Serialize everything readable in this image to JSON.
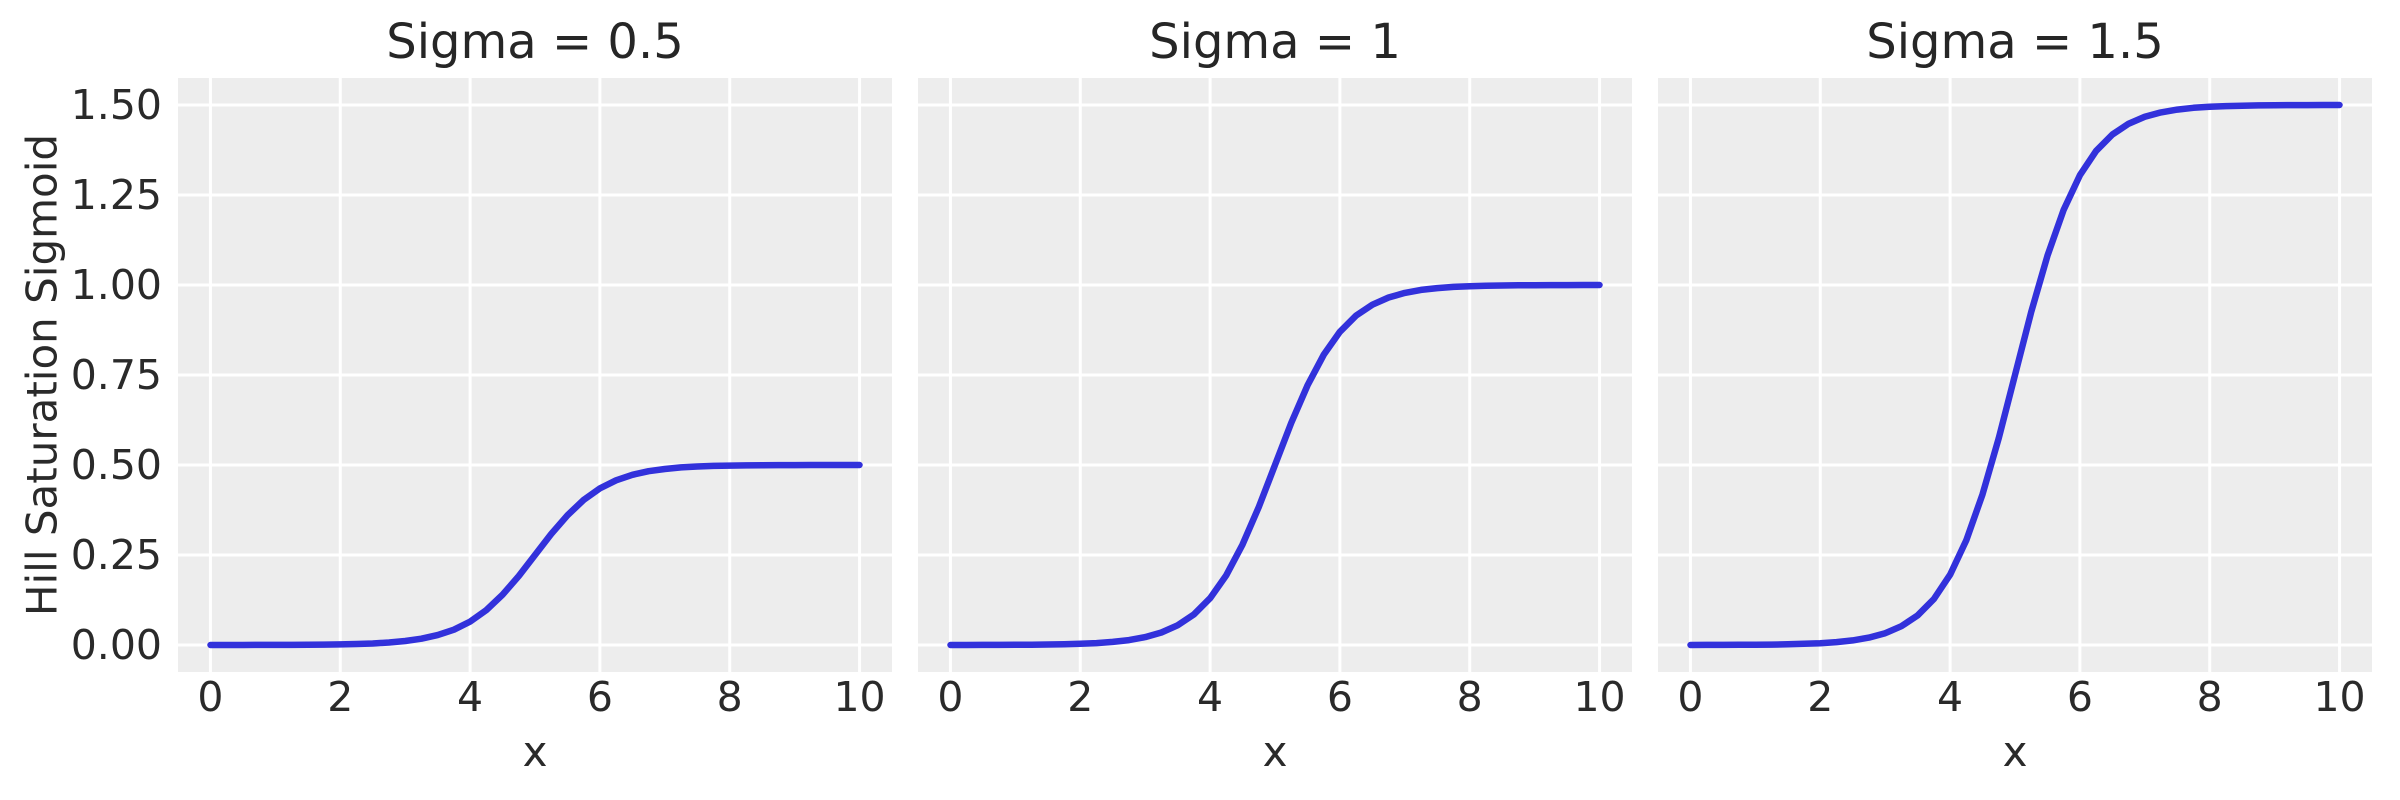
{
  "figure": {
    "background": "#ffffff",
    "axes_background": "#EDEDED",
    "grid_color": "#FFFFFF",
    "text_color": "#2a2a2a",
    "line_color": "#3231db"
  },
  "ylabel": "Hill Saturation Sigmoid",
  "y_tick_labels": [
    "1.50",
    "1.25",
    "1.00",
    "0.75",
    "0.50",
    "0.25",
    "0.00"
  ],
  "x_tick_labels": [
    "0",
    "2",
    "4",
    "6",
    "8",
    "10"
  ],
  "panels": [
    {
      "title": "Sigma = 0.5",
      "xlabel": "x"
    },
    {
      "title": "Sigma = 1",
      "xlabel": "x"
    },
    {
      "title": "Sigma = 1.5",
      "xlabel": "x"
    }
  ],
  "chart_data": {
    "type": "line",
    "title": "",
    "subplot_titles": [
      "Sigma = 0.5",
      "Sigma = 1",
      "Sigma = 1.5"
    ],
    "xlabel": "x",
    "ylabel": "Hill Saturation Sigmoid",
    "grid": true,
    "legend": false,
    "xlim": [
      -0.5,
      10.5
    ],
    "ylim": [
      -0.075,
      1.575
    ],
    "x_tick_values": [
      0,
      2,
      4,
      6,
      8,
      10
    ],
    "y_tick_values": [
      0,
      0.25,
      0.5,
      0.75,
      1.0,
      1.25,
      1.5
    ],
    "x": [
      0,
      0.25,
      0.5,
      0.75,
      1,
      1.25,
      1.5,
      1.75,
      2,
      2.25,
      2.5,
      2.75,
      3,
      3.25,
      3.5,
      3.75,
      4,
      4.25,
      4.5,
      4.75,
      5,
      5.25,
      5.5,
      5.75,
      6,
      6.25,
      6.5,
      6.75,
      7,
      7.25,
      7.5,
      7.75,
      8,
      8.25,
      8.5,
      8.75,
      9,
      9.25,
      9.5,
      9.75,
      10
    ],
    "series": [
      {
        "name": "Sigma = 0.5",
        "sigma": 0.5,
        "saturation": 0.5,
        "midpoint": 5,
        "slope": 1.9,
        "values": [
          0.0001,
          0.0001,
          0.0001,
          0.0002,
          0.0003,
          0.0004,
          0.0007,
          0.0011,
          0.0017,
          0.0027,
          0.0043,
          0.0069,
          0.011,
          0.0174,
          0.0274,
          0.0426,
          0.0651,
          0.097,
          0.1395,
          0.1917,
          0.25,
          0.3083,
          0.3606,
          0.4031,
          0.435,
          0.4575,
          0.4727,
          0.4827,
          0.489,
          0.4932,
          0.4957,
          0.4974,
          0.4984,
          0.499,
          0.4994,
          0.4996,
          0.4998,
          0.4999,
          0.4999,
          0.5,
          0.5
        ]
      },
      {
        "name": "Sigma = 1",
        "sigma": 1,
        "saturation": 1.0,
        "midpoint": 5,
        "slope": 1.9,
        "values": [
          0.0001,
          0.0001,
          0.0002,
          0.0003,
          0.0005,
          0.0008,
          0.0013,
          0.0021,
          0.0033,
          0.0053,
          0.0086,
          0.0137,
          0.0219,
          0.0347,
          0.0547,
          0.0851,
          0.1301,
          0.1939,
          0.2789,
          0.3834,
          0.5,
          0.6166,
          0.7211,
          0.8061,
          0.8699,
          0.9149,
          0.9453,
          0.9653,
          0.9781,
          0.9863,
          0.9914,
          0.9947,
          0.9967,
          0.9979,
          0.9987,
          0.9992,
          0.9995,
          0.9997,
          0.9998,
          0.9999,
          0.9999
        ]
      },
      {
        "name": "Sigma = 1.5",
        "sigma": 1.5,
        "saturation": 1.5,
        "midpoint": 5,
        "slope": 1.9,
        "values": [
          0.0001,
          0.0002,
          0.0003,
          0.0005,
          0.0008,
          0.0012,
          0.002,
          0.0032,
          0.005,
          0.008,
          0.0129,
          0.0206,
          0.0329,
          0.0521,
          0.0821,
          0.1277,
          0.1952,
          0.2909,
          0.4184,
          0.5751,
          0.75,
          0.9249,
          1.0817,
          1.2092,
          1.3049,
          1.3724,
          1.418,
          1.448,
          1.4672,
          1.4795,
          1.4871,
          1.4921,
          1.4951,
          1.4969,
          1.4981,
          1.4988,
          1.4993,
          1.4996,
          1.4997,
          1.4999,
          1.4999
        ]
      }
    ]
  },
  "layout_note": ""
}
